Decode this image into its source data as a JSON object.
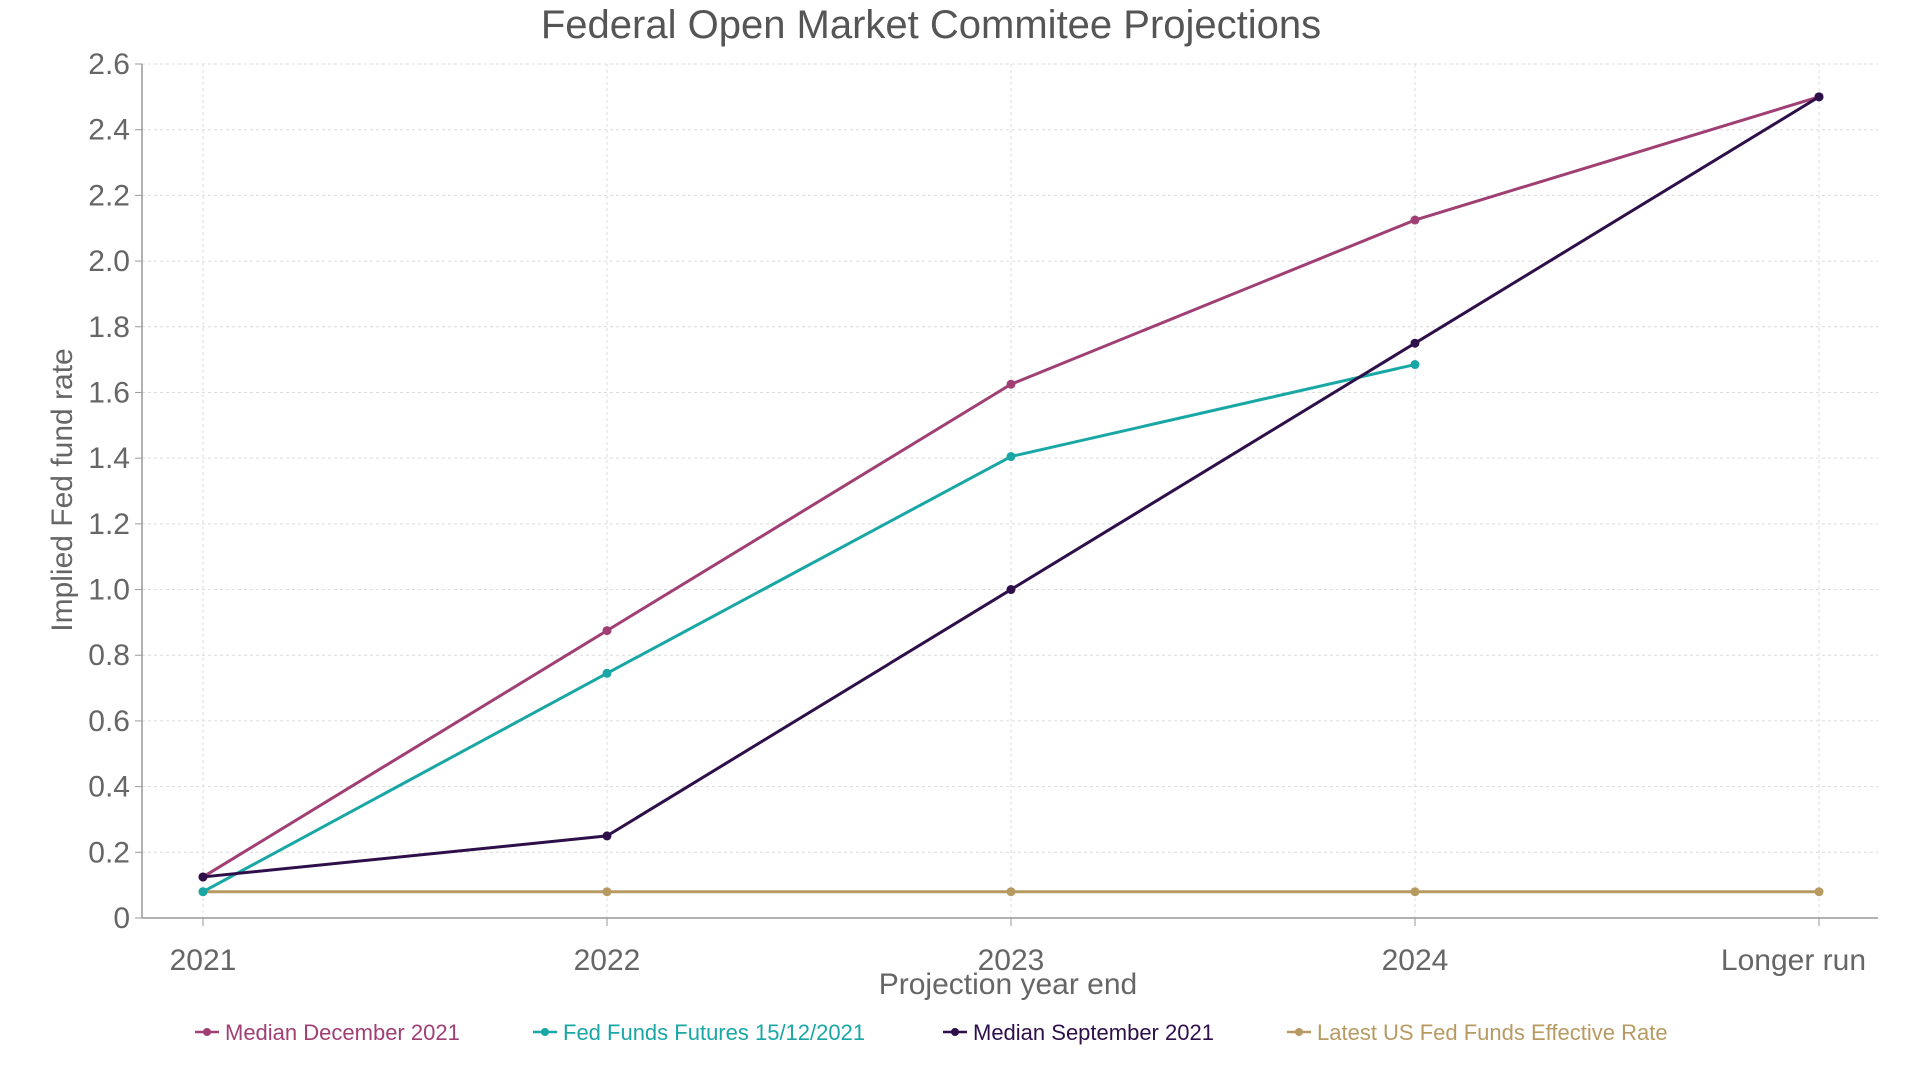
{
  "chart_data": {
    "type": "line",
    "title": "Federal Open Market Commitee Projections",
    "xlabel": "Projection year end",
    "ylabel": "Implied Fed fund rate",
    "categories": [
      "2021",
      "2022",
      "2023",
      "2024",
      "Longer run"
    ],
    "ylim": [
      0,
      2.6
    ],
    "yticks": [
      0,
      0.2,
      0.4,
      0.6,
      0.8,
      1.0,
      1.2,
      1.4,
      1.6,
      1.8,
      2.0,
      2.2,
      2.4,
      2.6
    ],
    "ytick_labels": [
      "0",
      "0.2",
      "0.4",
      "0.6",
      "0.8",
      "1.0",
      "1.2",
      "1.4",
      "1.6",
      "1.8",
      "2.0",
      "2.2",
      "2.4",
      "2.6"
    ],
    "grid": true,
    "legend_position": "bottom",
    "series": [
      {
        "name": "Median December 2021",
        "color": "#a03f74",
        "values": [
          0.125,
          0.875,
          1.625,
          2.125,
          2.5
        ]
      },
      {
        "name": "Fed Funds Futures 15/12/2021",
        "color": "#19a7a6",
        "values": [
          0.08,
          0.745,
          1.405,
          1.685,
          null
        ]
      },
      {
        "name": "Median September 2021",
        "color": "#2e0f4a",
        "values": [
          0.125,
          0.25,
          1.0,
          1.75,
          2.5
        ]
      },
      {
        "name": "Latest US Fed Funds Effective Rate",
        "color": "#b79a62",
        "values": [
          0.08,
          0.08,
          0.08,
          0.08,
          0.08
        ]
      }
    ]
  }
}
